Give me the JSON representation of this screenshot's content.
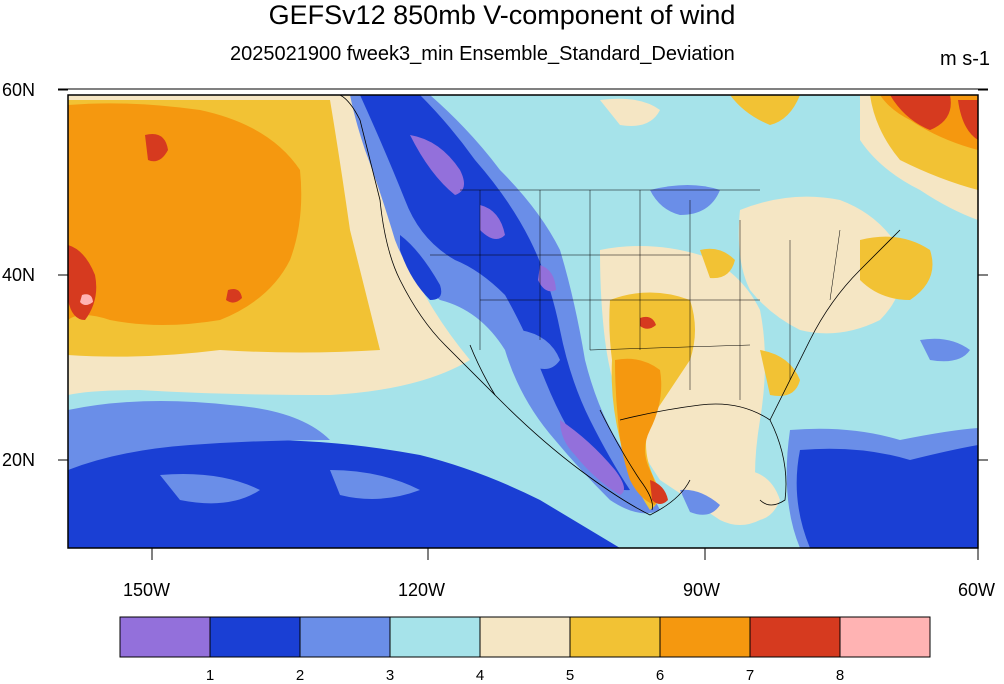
{
  "title": "GEFSv12 850mb V-component of wind",
  "subtitle": "2025021900 fweek3_min Ensemble_Standard_Deviation",
  "units": "m s-1",
  "lat_labels": [
    "60N",
    "40N",
    "20N"
  ],
  "lon_labels": [
    "150W",
    "120W",
    "90W",
    "60W"
  ],
  "colorbar": {
    "colors": [
      "#9370db",
      "#1a3fd4",
      "#6a8ee8",
      "#a6e3ea",
      "#f5e6c4",
      "#f2c234",
      "#f5980f",
      "#d63a1f",
      "#ffb3b3"
    ],
    "labels": [
      "1",
      "2",
      "3",
      "4",
      "5",
      "6",
      "7",
      "8"
    ]
  }
}
